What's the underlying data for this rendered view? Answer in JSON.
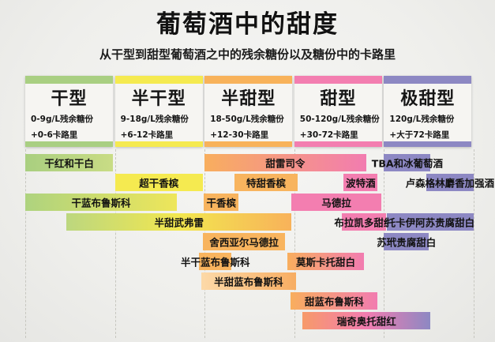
{
  "title": "葡萄酒中的甜度",
  "subtitle": "从干型到甜型葡萄酒之中的残余糖份以及糖份中的卡路里",
  "chart_data": {
    "type": "bar",
    "variant": "horizontal-range-infographic",
    "title": "葡萄酒中的甜度",
    "subtitle": "从干型到甜型葡萄酒之中的残余糖份以及糖份中的卡路里",
    "x_axis_note": "5 sweetness columns from dry to very sweet; wine bars span the sweetness ranges (units = column index 0-5)",
    "grid": "dashed vertical lines at every column boundary",
    "categories": [
      {
        "label": "干型",
        "sugar": "0-9g/L残余糖份",
        "calories": "+0-6卡路里",
        "color": "#a9cf82"
      },
      {
        "label": "半干型",
        "sugar": "9-18g/L残余糖份",
        "calories": "+6-12卡路里",
        "color": "#f5ea50"
      },
      {
        "label": "半甜型",
        "sugar": "18-50g/L残余糖份",
        "calories": "+12-30卡路里",
        "color": "#f8b25a"
      },
      {
        "label": "甜型",
        "sugar": "50-120g/L残余糖份",
        "calories": "+30-72卡路里",
        "color": "#f37eb0"
      },
      {
        "label": "极甜型",
        "sugar": "120g/L残余糖份",
        "calories": "+大于72卡路里",
        "color": "#8d88c3"
      }
    ],
    "wines": [
      {
        "name": "干红和干白",
        "row": 0,
        "start": 0.0,
        "end": 0.98,
        "colors": [
          "#a9cf80",
          "#c9dc85"
        ]
      },
      {
        "name": "甜雷司令",
        "row": 0,
        "start": 2.0,
        "end": 3.8,
        "colors": [
          "#f8ae5e",
          "#f27cb0"
        ]
      },
      {
        "name": "TBA和冰葡萄酒",
        "row": 0,
        "start": 4.0,
        "end": 4.52,
        "colors": [
          "#8d88c3"
        ]
      },
      {
        "name": "超干香槟",
        "row": 1,
        "start": 1.0,
        "end": 1.98,
        "colors": [
          "#f5ea50"
        ]
      },
      {
        "name": "特甜香槟",
        "row": 1,
        "start": 2.33,
        "end": 3.04,
        "colors": [
          "#f8b45e"
        ]
      },
      {
        "name": "波特酒",
        "row": 1,
        "start": 3.55,
        "end": 3.93,
        "colors": [
          "#f37eb0"
        ]
      },
      {
        "name": "卢森格林麝香加强酒",
        "row": 1,
        "start": 4.47,
        "end": 5.0,
        "colors": [
          "#8d88c3"
        ]
      },
      {
        "name": "干蓝布鲁斯科",
        "row": 2,
        "start": 0.0,
        "end": 1.69,
        "colors": [
          "#aed37f",
          "#eee65a"
        ]
      },
      {
        "name": "干香槟",
        "row": 2,
        "start": 1.99,
        "end": 2.38,
        "colors": [
          "#f8b45e"
        ]
      },
      {
        "name": "马德拉",
        "row": 2,
        "start": 2.97,
        "end": 3.97,
        "colors": [
          "#f37eb0"
        ]
      },
      {
        "name": "半甜武弗雷",
        "row": 3,
        "start": 0.46,
        "end": 2.97,
        "colors": [
          "#bcd77f",
          "#f2e74f",
          "#f8b25a"
        ]
      },
      {
        "name": "布拉凯多甜红",
        "row": 3,
        "start": 3.53,
        "end": 4.02,
        "colors": [
          "#f37eb0"
        ]
      },
      {
        "name": "托卡伊阿苏贵腐甜白",
        "row": 3,
        "start": 4.03,
        "end": 5.0,
        "colors": [
          "#8d88c3"
        ]
      },
      {
        "name": "舍西亚尔马德拉",
        "row": 4,
        "start": 1.98,
        "end": 2.9,
        "colors": [
          "#f8b45e"
        ]
      },
      {
        "name": "苏玳贵腐甜白",
        "row": 4,
        "start": 4.0,
        "end": 4.5,
        "colors": [
          "#8d88c3"
        ]
      },
      {
        "name": "半干蓝布鲁斯科",
        "row": 5,
        "start": 1.94,
        "end": 2.3,
        "colors": [
          "#f8b45e"
        ]
      },
      {
        "name": "莫斯卡托甜白",
        "row": 5,
        "start": 2.92,
        "end": 3.78,
        "colors": [
          "#f8ae5e",
          "#f27cb0"
        ]
      },
      {
        "name": "半甜蓝布鲁斯科",
        "row": 6,
        "start": 1.96,
        "end": 3.02,
        "colors": [
          "#fcd9a8",
          "#f7ad62"
        ]
      },
      {
        "name": "甜蓝布鲁斯科",
        "row": 7,
        "start": 2.96,
        "end": 3.93,
        "colors": [
          "#f8ae5e",
          "#f27cb0"
        ]
      },
      {
        "name": "瑞奇奥托甜红",
        "row": 8,
        "start": 3.09,
        "end": 4.52,
        "colors": [
          "#f79a6a",
          "#f27cb0",
          "#8d88c3"
        ]
      }
    ]
  }
}
